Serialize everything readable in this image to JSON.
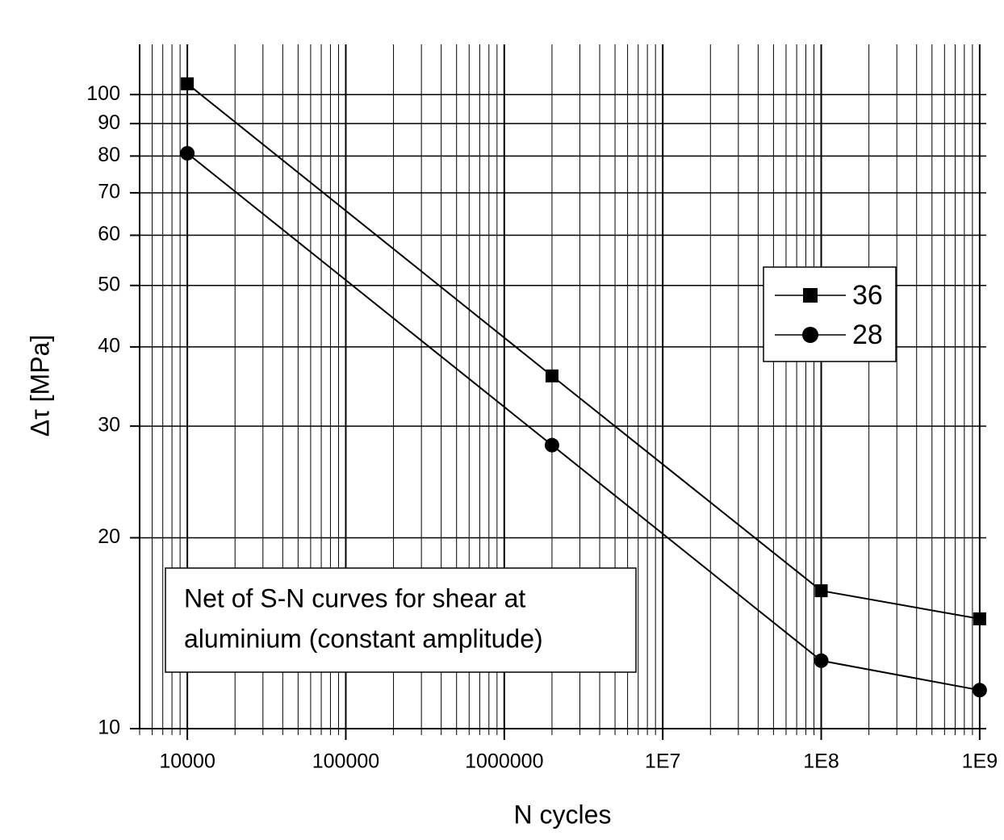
{
  "chart_data": {
    "type": "line",
    "x_label": "N cycles",
    "y_label": "Δτ [MPa]",
    "x_scale": "log",
    "y_scale": "log",
    "xlim": [
      5000,
      1100000000
    ],
    "ylim": [
      10,
      120
    ],
    "xticks": [
      10000,
      100000,
      1000000,
      {
        "value": 10000000,
        "label": "1E7"
      },
      {
        "value": 100000000,
        "label": "1E8"
      },
      {
        "value": 1000000000,
        "label": "1E9"
      }
    ],
    "yticks": [
      10,
      20,
      30,
      40,
      50,
      60,
      70,
      80,
      90,
      100
    ],
    "grid": true,
    "minor_grid": true,
    "x": [
      10000,
      2000000,
      100000000,
      1000000000
    ],
    "series": [
      {
        "name": "36",
        "color": "#000000",
        "marker": "square",
        "values": [
          104,
          36,
          16.5,
          14.9
        ]
      },
      {
        "name": "28",
        "color": "#000000",
        "marker": "circle",
        "values": [
          80.8,
          28,
          12.8,
          11.5
        ]
      }
    ],
    "legend_position": "right",
    "annotation": [
      "Net of S-N curves for shear at",
      "aluminium (constant amplitude)"
    ]
  }
}
